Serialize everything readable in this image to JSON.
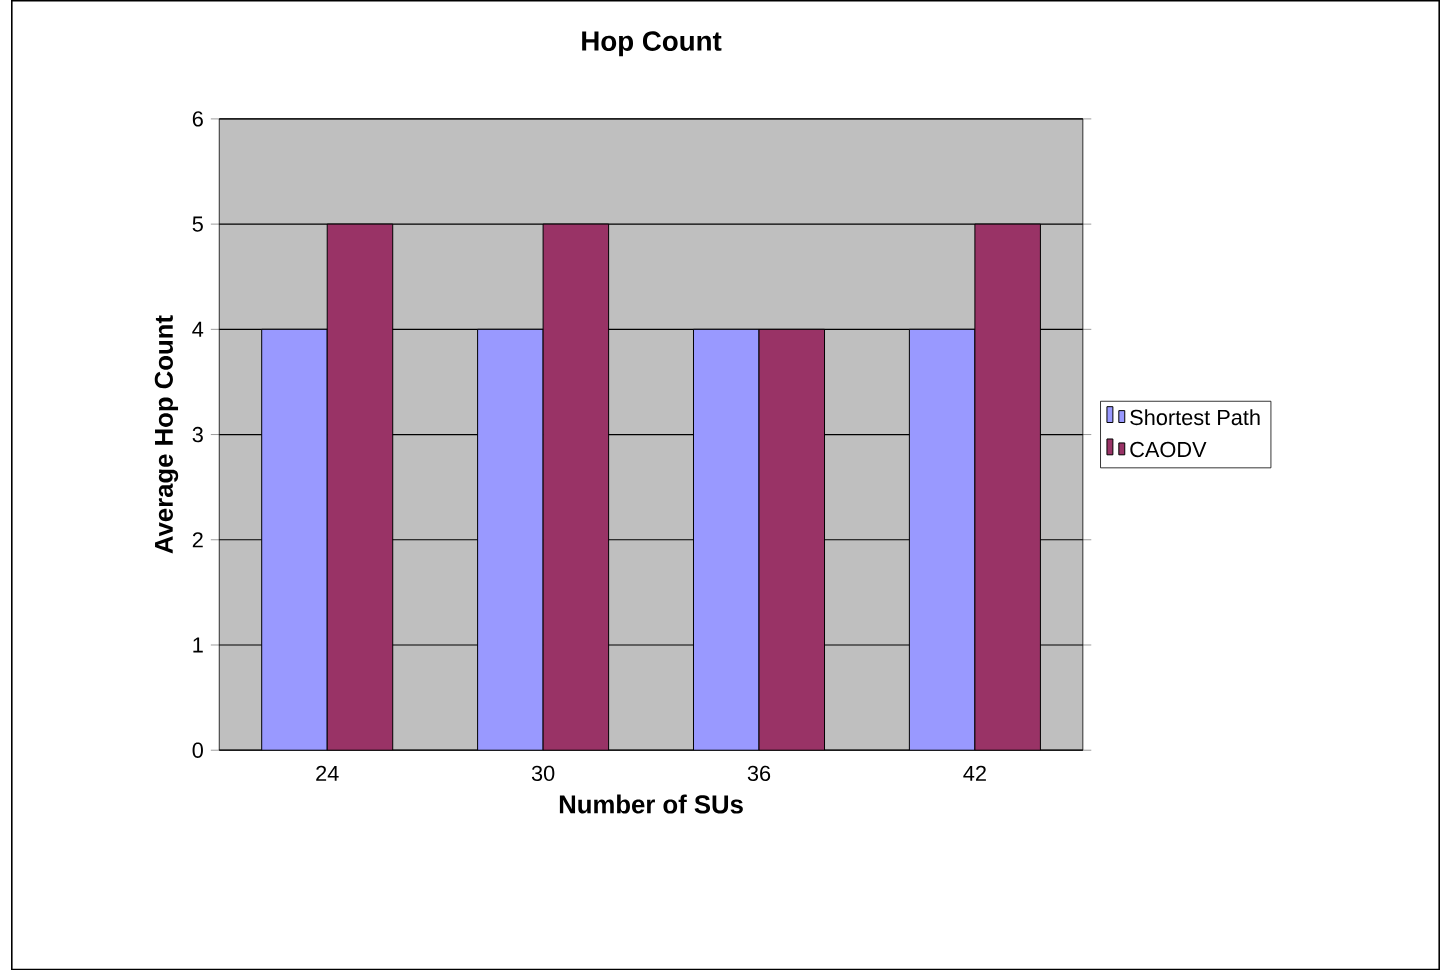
{
  "chart_data": {
    "type": "bar",
    "title": "Hop Count",
    "xlabel": "Number of SUs",
    "ylabel": "Average Hop Count",
    "categories": [
      "24",
      "30",
      "36",
      "42"
    ],
    "series": [
      {
        "name": "Shortest Path",
        "color": "#9999ff",
        "values": [
          4,
          4,
          4,
          4
        ]
      },
      {
        "name": "CAODV",
        "color": "#993366",
        "values": [
          5,
          5,
          4,
          5
        ]
      }
    ],
    "ylim": [
      0,
      6
    ],
    "yticks": [
      0,
      1,
      2,
      3,
      4,
      5,
      6
    ],
    "grid": "y",
    "legend": "right"
  }
}
